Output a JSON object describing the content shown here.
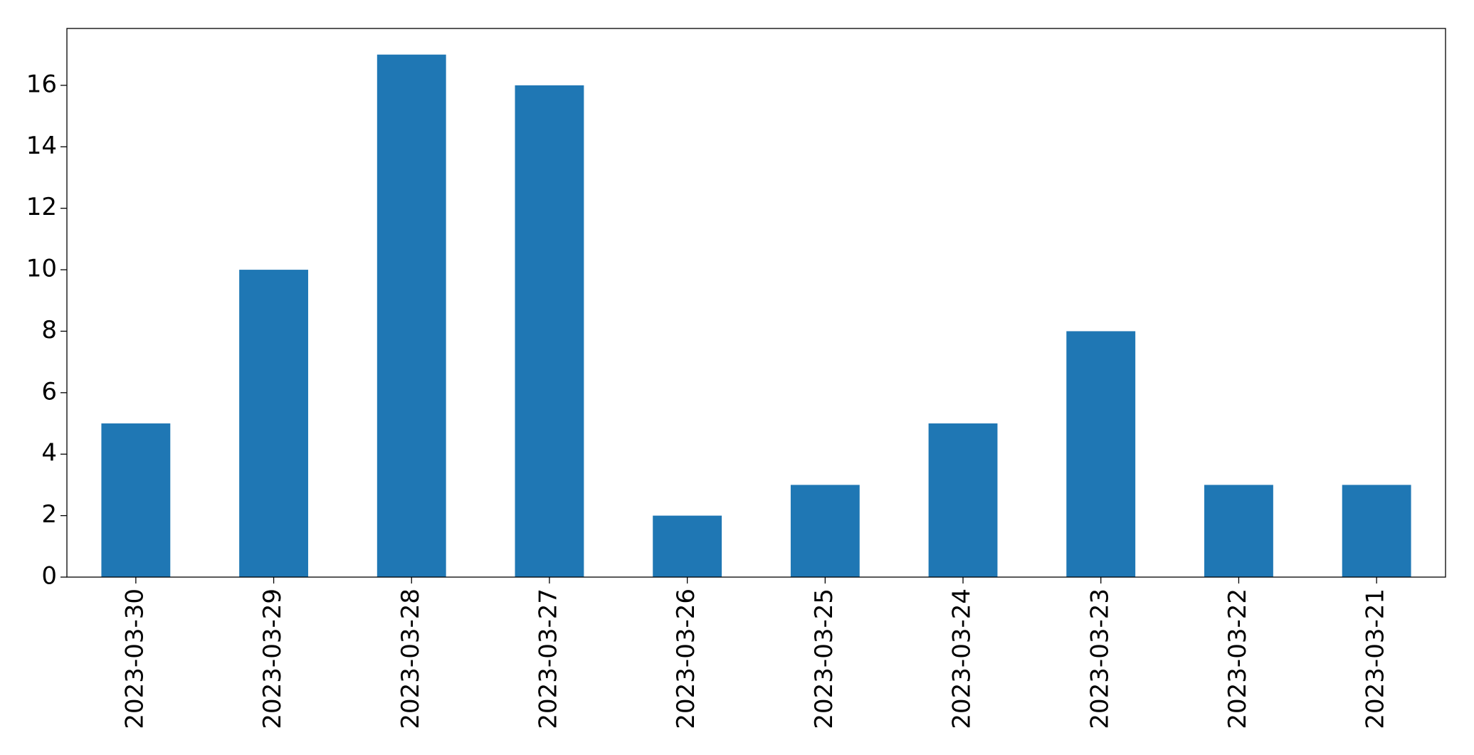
{
  "chart_data": {
    "type": "bar",
    "categories": [
      "2023-03-30",
      "2023-03-29",
      "2023-03-28",
      "2023-03-27",
      "2023-03-26",
      "2023-03-25",
      "2023-03-24",
      "2023-03-23",
      "2023-03-22",
      "2023-03-21"
    ],
    "values": [
      5,
      10,
      17,
      16,
      2,
      3,
      5,
      8,
      3,
      3
    ],
    "color": "#1f77b4",
    "ylim": [
      0,
      17.85
    ],
    "yticks": [
      0,
      2,
      4,
      6,
      8,
      10,
      12,
      14,
      16
    ],
    "grid": false
  }
}
